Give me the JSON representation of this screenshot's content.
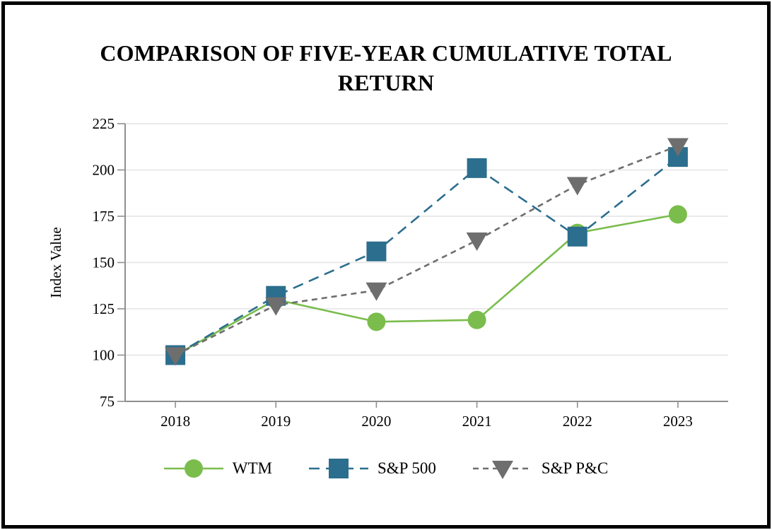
{
  "window": {
    "background_color": "#FFFFFF",
    "border_color": "#000000"
  },
  "header": {
    "title": "COMPARISON OF FIVE-YEAR CUMULATIVE TOTAL RETURN",
    "title_lines": [
      "COMPARISON OF FIVE-YEAR CUMULATIVE TOTAL",
      "RETURN"
    ]
  },
  "chart_data": {
    "type": "line",
    "title": "COMPARISON OF FIVE-YEAR CUMULATIVE TOTAL RETURN",
    "categories": [
      "2018",
      "2019",
      "2020",
      "2021",
      "2022",
      "2023"
    ],
    "series": [
      {
        "name": "WTM",
        "color": "#7ABD4C",
        "marker": "circle",
        "line_style": "solid",
        "values": [
          100,
          130,
          118,
          119,
          166,
          176
        ]
      },
      {
        "name": "S&P 500",
        "color": "#2C6E8E",
        "marker": "square",
        "line_style": "long-dash",
        "values": [
          100,
          132,
          156,
          201,
          164,
          207
        ]
      },
      {
        "name": "S&P P&C",
        "color": "#6E6E6E",
        "marker": "triangle-down",
        "line_style": "short-dash",
        "values": [
          100,
          127,
          135,
          162,
          192,
          213
        ]
      }
    ],
    "xlabel": "",
    "ylabel": "Index Value",
    "ylim": [
      75,
      225
    ],
    "yticks": [
      75,
      100,
      125,
      150,
      175,
      200,
      225
    ],
    "grid": true,
    "legend_position": "bottom"
  },
  "style_colors": {
    "axis": "#8F8F8F",
    "gridline": "#E3E3E3",
    "text": "#000000"
  }
}
